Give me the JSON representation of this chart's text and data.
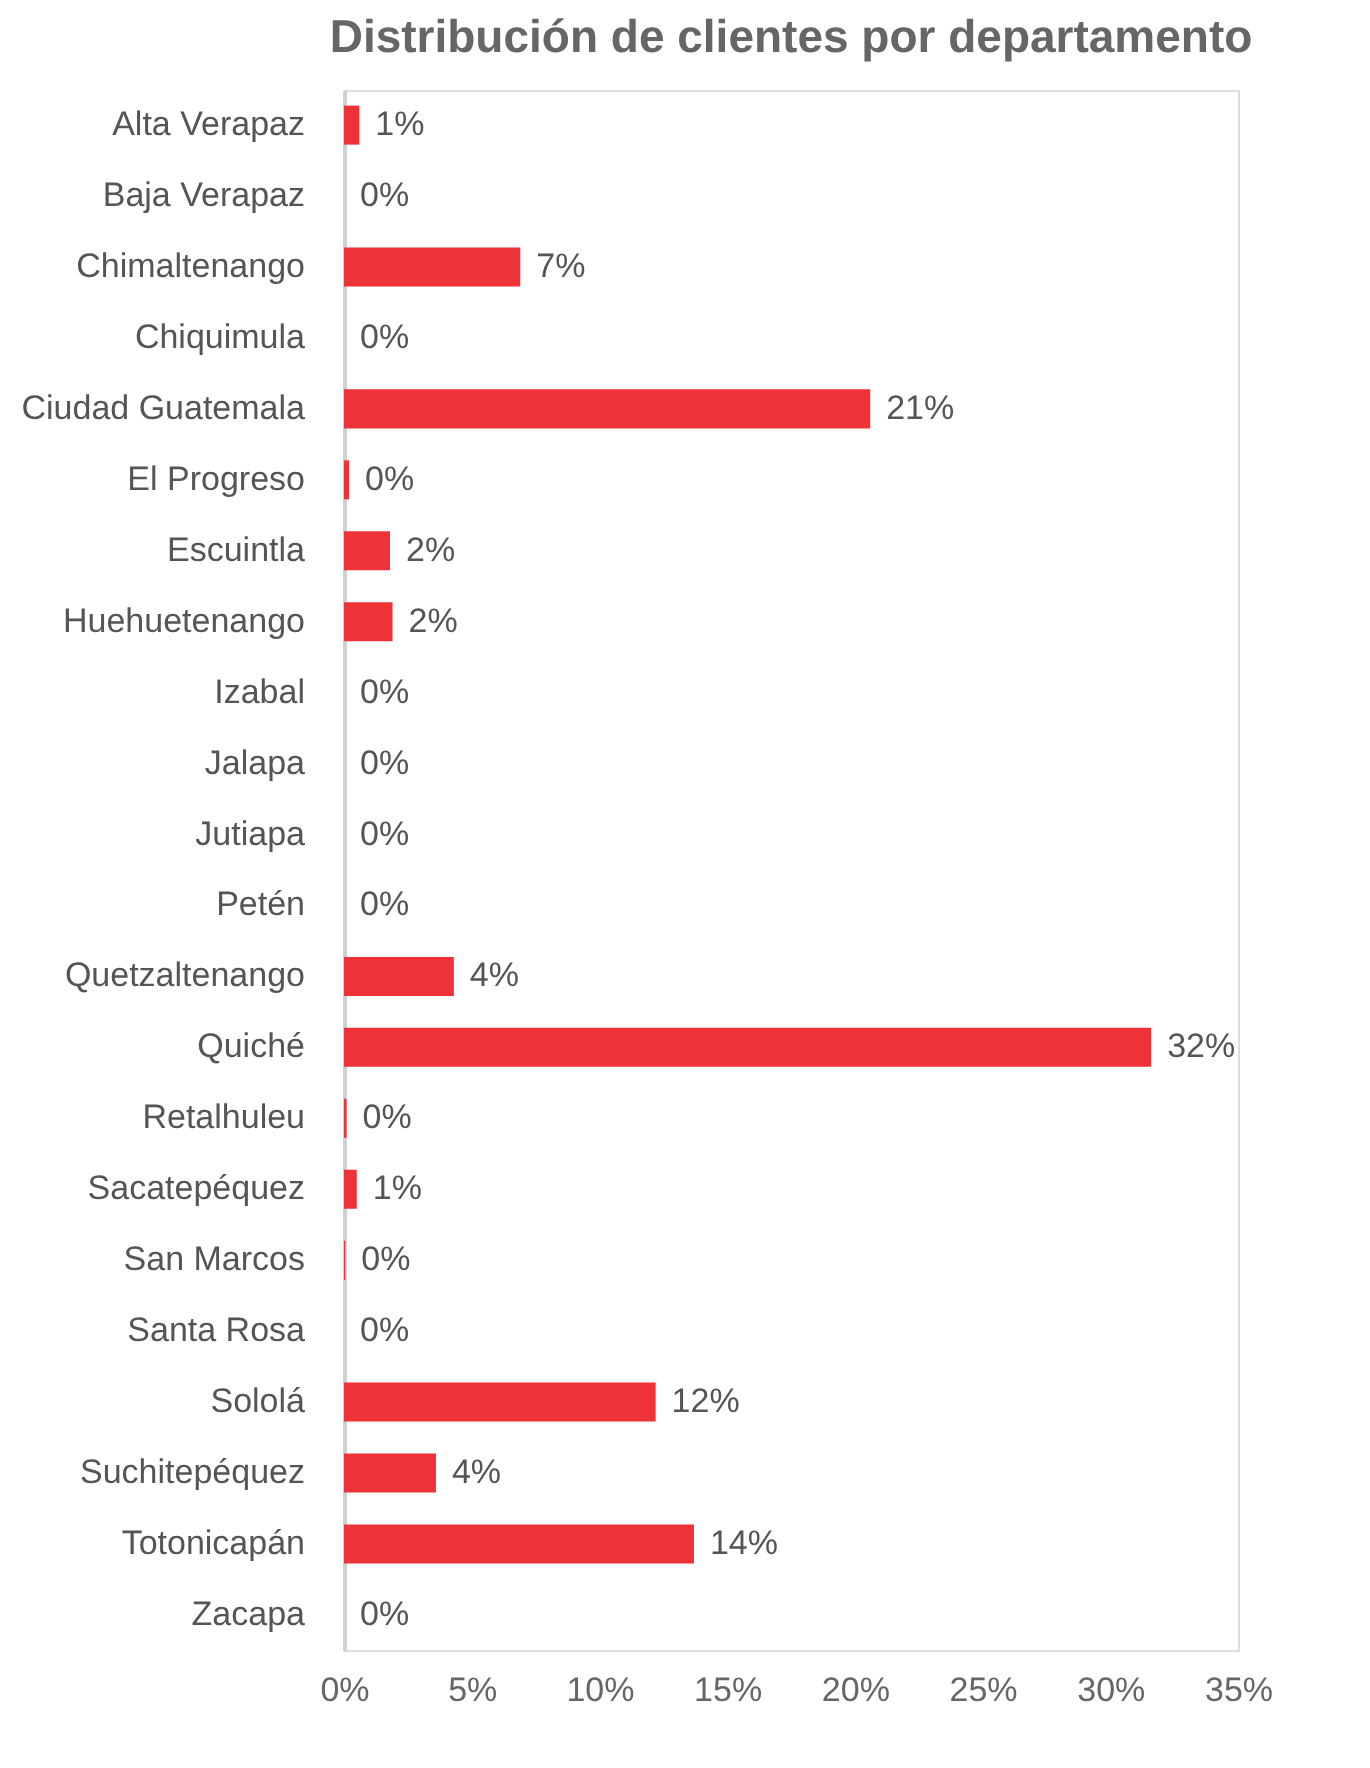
{
  "chart_data": {
    "type": "bar",
    "orientation": "horizontal",
    "title": "Distribución de clientes por departamento",
    "categories": [
      "Alta Verapaz",
      "Baja Verapaz",
      "Chimaltenango",
      "Chiquimula",
      "Ciudad Guatemala",
      "El Progreso",
      "Escuintla",
      "Huehuetenango",
      "Izabal",
      "Jalapa",
      "Jutiapa",
      "Petén",
      "Quetzaltenango",
      "Quiché",
      "Retalhuleu",
      "Sacatepéquez",
      "San Marcos",
      "Santa Rosa",
      "Sololá",
      "Suchitepéquez",
      "Totonicapán",
      "Zacapa"
    ],
    "values": [
      0.6,
      0,
      6.9,
      0,
      20.6,
      0.2,
      1.8,
      1.9,
      0,
      0,
      0,
      0,
      4.3,
      31.6,
      0.1,
      0.5,
      0.05,
      0,
      12.2,
      3.6,
      13.7,
      0
    ],
    "value_labels": [
      "1%",
      "0%",
      "7%",
      "0%",
      "21%",
      "0%",
      "2%",
      "2%",
      "0%",
      "0%",
      "0%",
      "0%",
      "4%",
      "32%",
      "0%",
      "1%",
      "0%",
      "0%",
      "12%",
      "4%",
      "14%",
      "0%"
    ],
    "color": "#ee3338",
    "xlim": [
      0,
      35
    ],
    "xticks": [
      {
        "value": 0,
        "label": "0%"
      },
      {
        "value": 5,
        "label": "5%"
      },
      {
        "value": 10,
        "label": "10%"
      },
      {
        "value": 15,
        "label": "15%"
      },
      {
        "value": 20,
        "label": "20%"
      },
      {
        "value": 25,
        "label": "25%"
      },
      {
        "value": 30,
        "label": "30%"
      },
      {
        "value": 35,
        "label": "35%"
      }
    ],
    "grid": false
  }
}
